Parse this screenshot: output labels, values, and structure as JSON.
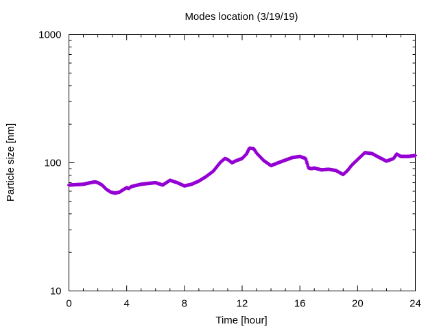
{
  "chart_data": {
    "type": "scatter",
    "title": "Modes location (3/19/19)",
    "xlabel": "Time [hour]",
    "ylabel": "Particle size [nm]",
    "xlim": [
      0,
      24
    ],
    "ylim": [
      10,
      1000
    ],
    "yscale": "log",
    "xticks": [
      0,
      4,
      8,
      12,
      16,
      20,
      24
    ],
    "xtick_labels": [
      "0",
      "4",
      "8",
      "12",
      "16",
      "20",
      "24"
    ],
    "yticks": [
      10,
      100,
      1000
    ],
    "ytick_labels": [
      "10",
      "100",
      "1000"
    ],
    "grid": false,
    "legend": "none",
    "marker_color": "#9400d3",
    "series": [
      {
        "x": [
          0,
          0.5,
          1,
          1.5,
          1.8,
          2,
          2.3,
          2.6,
          2.9,
          3.2,
          3.5,
          3.8,
          4,
          4.15,
          4.3,
          4.5,
          5,
          5.5,
          6,
          6.5,
          7,
          7.5,
          8,
          8.5,
          9,
          9.5,
          10,
          10.5,
          10.8,
          11,
          11.3,
          11.6,
          12,
          12.3,
          12.5,
          12.8,
          13,
          13.5,
          14,
          14.5,
          15,
          15.5,
          16,
          16.4,
          16.6,
          16.8,
          17,
          17.5,
          18,
          18.5,
          19,
          19.3,
          19.6,
          20,
          20.5,
          21,
          21.5,
          22,
          22.5,
          22.7,
          23,
          23.5,
          24
        ],
        "y": [
          67,
          67.5,
          68,
          70,
          71,
          70,
          67,
          62,
          59,
          58,
          59,
          62,
          64,
          63,
          65,
          66,
          68,
          69,
          70,
          67,
          73,
          70,
          66,
          68,
          72,
          78,
          86,
          101,
          108,
          106,
          100,
          104,
          108,
          117,
          130,
          129,
          119,
          104,
          95,
          100,
          105,
          110,
          112,
          108,
          91,
          90,
          91,
          88,
          89,
          87,
          81,
          87,
          96,
          106,
          120,
          118,
          110,
          103,
          108,
          117,
          112,
          112,
          114
        ]
      }
    ]
  }
}
